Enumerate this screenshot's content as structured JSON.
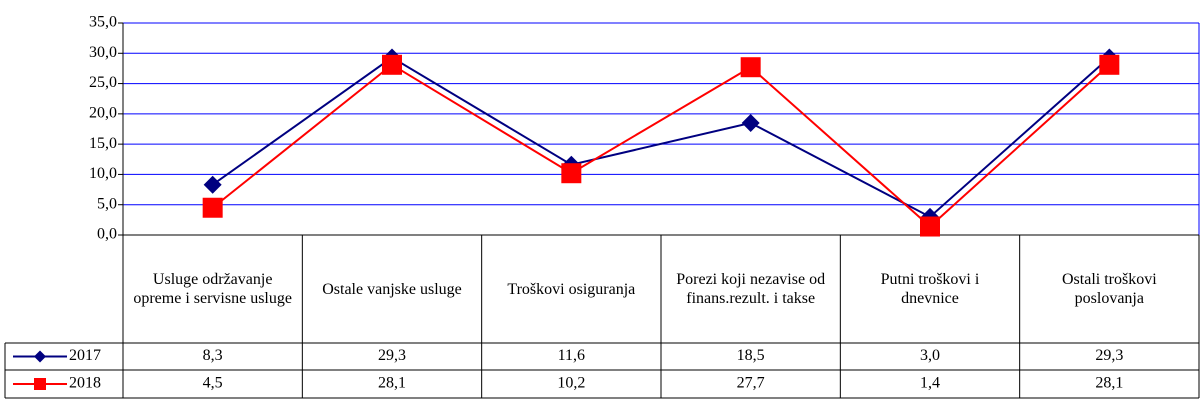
{
  "chart_data": {
    "type": "line",
    "categories": [
      "Usluge održavanje opreme i servisne usluge",
      "Ostale vanjske usluge",
      "Troškovi osiguranja",
      "Porezi koji nezavise od finans.rezult. i takse",
      "Putni troškovi i dnevnice",
      "Ostali troškovi poslovanja"
    ],
    "series": [
      {
        "name": "2017",
        "color": "#000080",
        "marker": "diamond",
        "values": [
          8.3,
          29.3,
          11.6,
          18.5,
          3.0,
          29.3
        ],
        "value_labels": [
          "8,3",
          "29,3",
          "11,6",
          "18,5",
          "3,0",
          "29,3"
        ]
      },
      {
        "name": "2018",
        "color": "#ff0000",
        "marker": "square",
        "values": [
          4.5,
          28.1,
          10.2,
          27.7,
          1.4,
          28.1
        ],
        "value_labels": [
          "4,5",
          "28,1",
          "10,2",
          "27,7",
          "1,4",
          "28,1"
        ]
      }
    ],
    "ylim": [
      0,
      35
    ],
    "yticks": [
      {
        "value": 0,
        "label": "0,0"
      },
      {
        "value": 5,
        "label": "5,0"
      },
      {
        "value": 10,
        "label": "10,0"
      },
      {
        "value": 15,
        "label": "15,0"
      },
      {
        "value": 20,
        "label": "20,0"
      },
      {
        "value": 25,
        "label": "25,0"
      },
      {
        "value": 30,
        "label": "30,0"
      },
      {
        "value": 35,
        "label": "35,0"
      }
    ],
    "grid": true
  }
}
